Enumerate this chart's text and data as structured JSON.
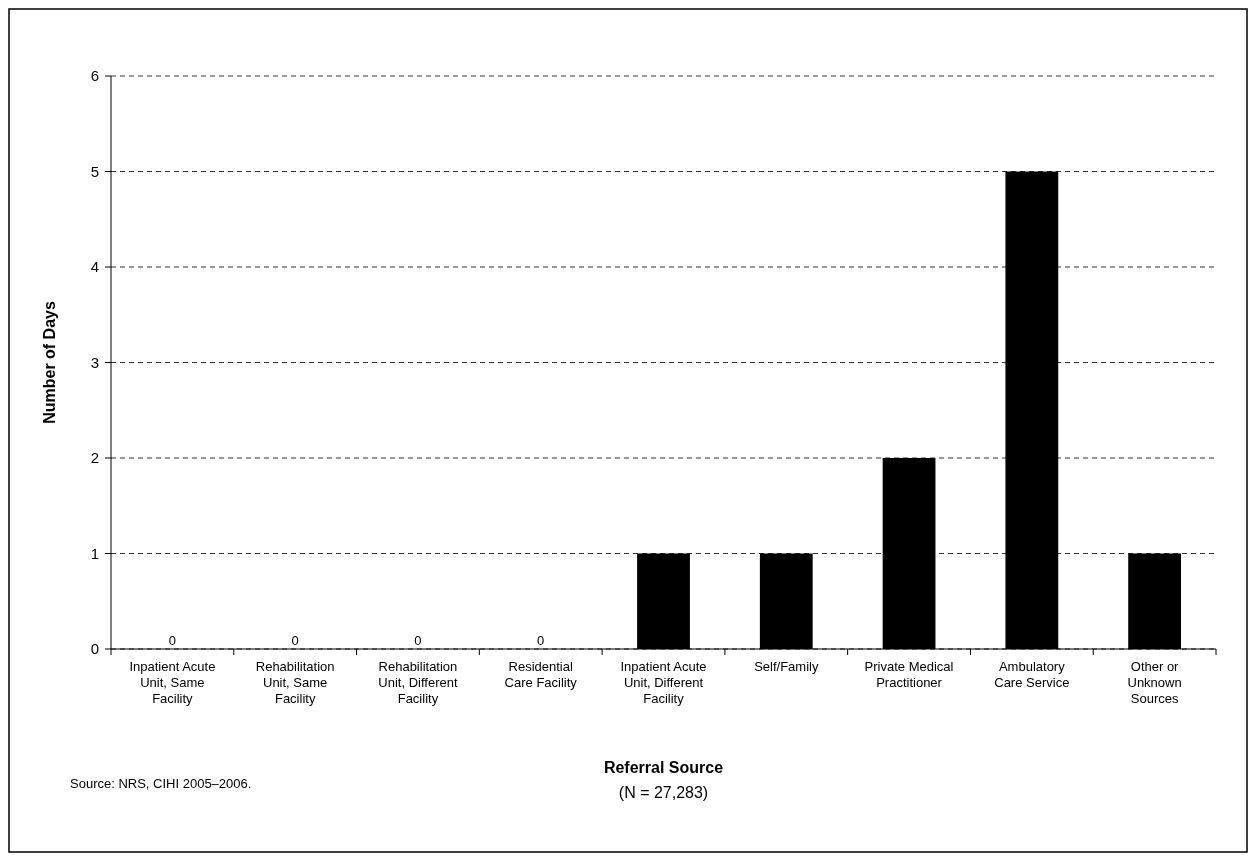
{
  "chart_data": {
    "type": "bar",
    "ylabel": "Number of Days",
    "xlabel": "Referral Source",
    "categories": [
      "Inpatient Acute Unit, Same Facility",
      "Rehabilitation Unit, Same Facility",
      "Rehabilitation Unit, Different Facility",
      "Residential Care Facility",
      "Inpatient Acute Unit, Different Facility",
      "Self/Family",
      "Private Medical Practitioner",
      "Ambulatory Care Service",
      "Other or Unknown Sources"
    ],
    "values": [
      0,
      0,
      0,
      0,
      1,
      1,
      2,
      5,
      1
    ],
    "value_labels": [
      "0",
      "0",
      "0",
      "0",
      null,
      null,
      null,
      null,
      null
    ],
    "color": "#000000",
    "ylim": [
      0,
      6
    ],
    "yticks": [
      0,
      1,
      2,
      3,
      4,
      5,
      6
    ],
    "grid": "y",
    "annotations": [
      "(N = 27,283)",
      "Source: NRS, CIHI 2005–2006."
    ]
  }
}
